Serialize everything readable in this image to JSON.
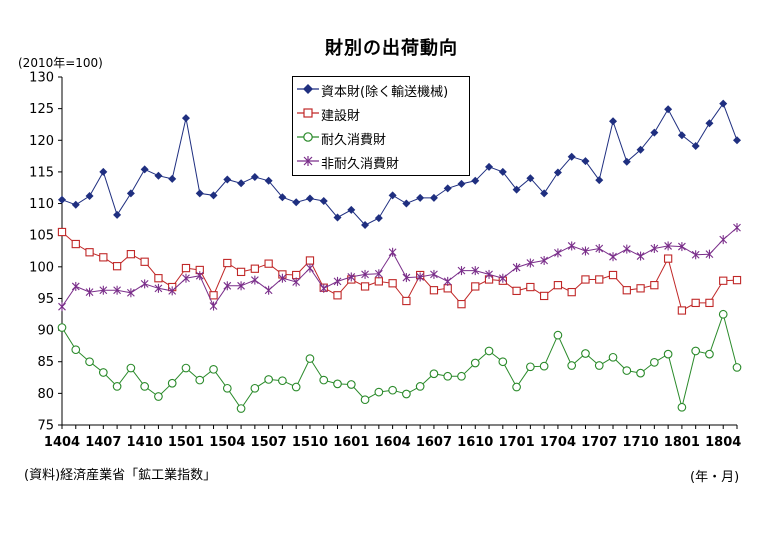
{
  "chart_data": {
    "type": "line",
    "title": "財別の出荷動向",
    "unit_note": "(2010年=100)",
    "source": "(資料)経済産業省「鉱工業指数」",
    "x_unit_label": "(年・月)",
    "ylim": [
      75,
      130
    ],
    "yticks": [
      75,
      80,
      85,
      90,
      95,
      100,
      105,
      110,
      115,
      120,
      125,
      130
    ],
    "x": [
      "1404",
      "1405",
      "1406",
      "1407",
      "1408",
      "1409",
      "1410",
      "1411",
      "1412",
      "1501",
      "1502",
      "1503",
      "1504",
      "1505",
      "1506",
      "1507",
      "1508",
      "1509",
      "1510",
      "1511",
      "1512",
      "1601",
      "1602",
      "1603",
      "1604",
      "1605",
      "1606",
      "1607",
      "1608",
      "1609",
      "1610",
      "1611",
      "1612",
      "1701",
      "1702",
      "1703",
      "1704",
      "1705",
      "1706",
      "1707",
      "1708",
      "1709",
      "1710",
      "1711",
      "1712",
      "1801",
      "1802",
      "1803",
      "1804",
      "1805"
    ],
    "xtick_labels": [
      "1404",
      "1407",
      "1410",
      "1501",
      "1504",
      "1507",
      "1510",
      "1601",
      "1604",
      "1607",
      "1610",
      "1701",
      "1704",
      "1707",
      "1710",
      "1801",
      "1804"
    ],
    "grid": false,
    "legend_position": "top-center",
    "series": [
      {
        "name": "資本財(除く輸送機械)",
        "color": "#1f2f80",
        "marker": "diamond",
        "values": [
          110.6,
          109.8,
          111.2,
          115.0,
          108.2,
          111.6,
          115.4,
          114.4,
          113.9,
          123.5,
          111.6,
          111.3,
          113.8,
          113.2,
          114.2,
          113.6,
          111.0,
          110.2,
          110.8,
          110.4,
          107.8,
          109.0,
          106.6,
          107.7,
          111.3,
          110.0,
          110.9,
          110.9,
          112.4,
          113.1,
          113.6,
          115.8,
          115.0,
          112.2,
          114.0,
          111.6,
          114.9,
          117.4,
          116.7,
          113.7,
          123.0,
          116.6,
          118.5,
          121.2,
          124.9,
          120.8,
          119.1,
          122.7,
          125.8,
          120.0
        ]
      },
      {
        "name": "建設財",
        "color": "#c02828",
        "marker": "square-open",
        "values": [
          105.5,
          103.6,
          102.3,
          101.5,
          100.1,
          102.0,
          100.8,
          98.2,
          96.8,
          99.8,
          99.5,
          95.5,
          100.6,
          99.2,
          99.7,
          100.5,
          98.8,
          98.7,
          101.0,
          96.7,
          95.5,
          98.0,
          96.9,
          97.7,
          97.4,
          94.6,
          98.7,
          96.3,
          96.6,
          94.1,
          96.9,
          98.0,
          97.8,
          96.2,
          96.8,
          95.4,
          97.1,
          96.0,
          98.0,
          98.0,
          98.7,
          96.3,
          96.6,
          97.1,
          101.3,
          93.1,
          94.3,
          94.3,
          97.8,
          97.9
        ]
      },
      {
        "name": "耐久消費財",
        "color": "#2a8a2a",
        "marker": "circle-open",
        "values": [
          90.4,
          86.9,
          85.0,
          83.3,
          81.1,
          84.0,
          81.1,
          79.5,
          81.6,
          84.0,
          82.1,
          83.8,
          80.8,
          77.6,
          80.8,
          82.2,
          82.0,
          81.0,
          85.5,
          82.1,
          81.5,
          81.4,
          79.0,
          80.2,
          80.5,
          79.9,
          81.1,
          83.1,
          82.7,
          82.7,
          84.8,
          86.7,
          85.0,
          81.0,
          84.2,
          84.3,
          89.2,
          84.4,
          86.3,
          84.4,
          85.7,
          83.6,
          83.2,
          84.9,
          86.2,
          77.8,
          86.7,
          86.2,
          92.5,
          84.1
        ]
      },
      {
        "name": "非耐久消費財",
        "color": "#7a2e8a",
        "marker": "star",
        "values": [
          93.7,
          96.9,
          96.0,
          96.3,
          96.3,
          95.9,
          97.3,
          96.6,
          96.2,
          98.2,
          98.6,
          93.8,
          97.0,
          97.0,
          97.9,
          96.3,
          98.2,
          97.6,
          99.8,
          96.6,
          97.7,
          98.4,
          98.8,
          98.9,
          102.3,
          98.3,
          98.4,
          98.8,
          97.7,
          99.4,
          99.4,
          98.8,
          98.2,
          99.9,
          100.6,
          101.0,
          102.2,
          103.3,
          102.5,
          102.9,
          101.6,
          102.8,
          101.7,
          102.9,
          103.3,
          103.2,
          101.9,
          102.0,
          104.3,
          106.2
        ]
      }
    ]
  }
}
